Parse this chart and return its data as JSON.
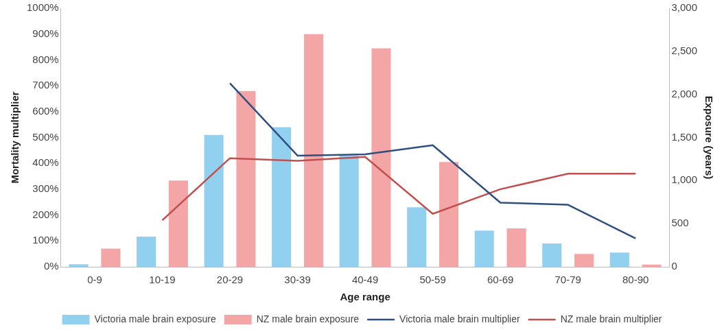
{
  "chart_data": {
    "type": "bar",
    "xlabel": "Age range",
    "ylabel": "Mortality multiplier",
    "y2label": "Exposure (years)",
    "categories": [
      "0-9",
      "10-19",
      "20-29",
      "30-39",
      "40-49",
      "50-59",
      "60-69",
      "70-79",
      "80-90"
    ],
    "series": [
      {
        "name": "Victoria male brain exposure",
        "axis": "y2",
        "color": "#92d0f0",
        "values": [
          30,
          350,
          1530,
          1620,
          1290,
          690,
          420,
          270,
          165
        ]
      },
      {
        "name": "NZ male brain exposure",
        "axis": "y2",
        "color": "#f4a6a6",
        "values": [
          210,
          1000,
          2040,
          2700,
          2535,
          1215,
          445,
          150,
          25
        ]
      },
      {
        "name": "Victoria male brain multiplier",
        "type": "line",
        "color": "#2e4f7f",
        "values": [
          null,
          null,
          710,
          430,
          435,
          470,
          248,
          240,
          110
        ]
      },
      {
        "name": "NZ male brain multiplier",
        "type": "line",
        "color": "#c0504d",
        "values": [
          null,
          180,
          420,
          410,
          425,
          205,
          300,
          360,
          360
        ]
      }
    ],
    "ylim": [
      0,
      1000
    ],
    "yticks": [
      {
        "value": 0,
        "label": "0%"
      },
      {
        "value": 100,
        "label": "100%"
      },
      {
        "value": 200,
        "label": "200%"
      },
      {
        "value": 300,
        "label": "300%"
      },
      {
        "value": 400,
        "label": "400%"
      },
      {
        "value": 500,
        "label": "500%"
      },
      {
        "value": 600,
        "label": "600%"
      },
      {
        "value": 700,
        "label": "700%"
      },
      {
        "value": 800,
        "label": "800%"
      },
      {
        "value": 900,
        "label": "900%"
      },
      {
        "value": 1000,
        "label": "1000%"
      }
    ],
    "y2lim": [
      0,
      3000
    ],
    "y2ticks": [
      0,
      500,
      {
        "value": 1000,
        "label": "1,000"
      },
      {
        "value": 1500,
        "label": "1,500"
      },
      {
        "value": 2000,
        "label": "2,000"
      },
      {
        "value": 2500,
        "label": "2,500"
      },
      {
        "value": 3000,
        "label": "3,000"
      }
    ],
    "grid": false,
    "legend": "bottom",
    "marker": "none",
    "line_style": "solid"
  }
}
